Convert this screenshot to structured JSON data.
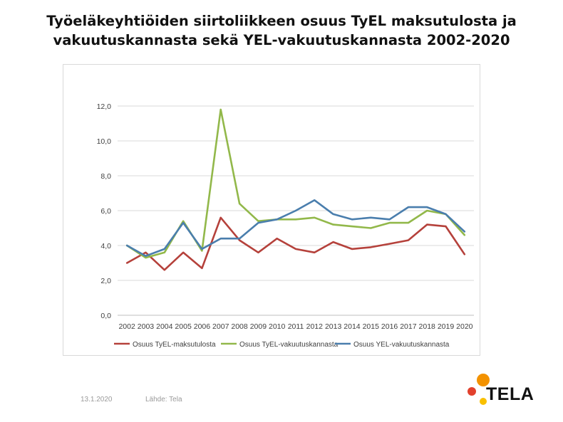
{
  "title": {
    "line1": "Työeläkeyhtiöiden siirtoliikkeen osuus TyEL maksutulosta ja",
    "line2": "vakuutuskannasta sekä YEL-vakuutuskannasta 2002-2020"
  },
  "footer": {
    "date": "13.1.2020",
    "source": "Lähde: Tela"
  },
  "logo": {
    "text": "TELA",
    "colors": [
      "#f39200",
      "#e2412d",
      "#f9c000"
    ]
  },
  "chart_data": {
    "type": "line",
    "title": "",
    "xlabel": "",
    "ylabel": "",
    "ylim": [
      0,
      12
    ],
    "yticks": [
      "0,0",
      "2,0",
      "4,0",
      "6,0",
      "8,0",
      "10,0",
      "12,0"
    ],
    "grid": true,
    "legend_position": "bottom",
    "categories": [
      "2002",
      "2003",
      "2004",
      "2005",
      "2006",
      "2007",
      "2008",
      "2009",
      "2010",
      "2011",
      "2012",
      "2013",
      "2014",
      "2015",
      "2016",
      "2017",
      "2018",
      "2019",
      "2020"
    ],
    "series": [
      {
        "name": "Osuus TyEL-maksutulosta",
        "color": "#b5413b",
        "values": [
          3.0,
          3.6,
          2.6,
          3.6,
          2.7,
          5.6,
          4.3,
          3.6,
          4.4,
          3.8,
          3.6,
          4.2,
          3.8,
          3.9,
          4.1,
          4.3,
          5.2,
          5.1,
          3.5
        ]
      },
      {
        "name": "Osuus TyEL-vakuutuskannasta",
        "color": "#92b84a",
        "values": [
          4.0,
          3.3,
          3.6,
          5.4,
          3.7,
          11.8,
          6.4,
          5.4,
          5.5,
          5.5,
          5.6,
          5.2,
          5.1,
          5.0,
          5.3,
          5.3,
          6.0,
          5.8,
          4.6
        ]
      },
      {
        "name": "Osuus YEL-vakuutuskannasta",
        "color": "#4a7ead",
        "values": [
          4.0,
          3.4,
          3.8,
          5.3,
          3.8,
          4.4,
          4.4,
          5.3,
          5.5,
          6.0,
          6.6,
          5.8,
          5.5,
          5.6,
          5.5,
          6.2,
          6.2,
          5.8,
          4.8
        ]
      }
    ]
  }
}
